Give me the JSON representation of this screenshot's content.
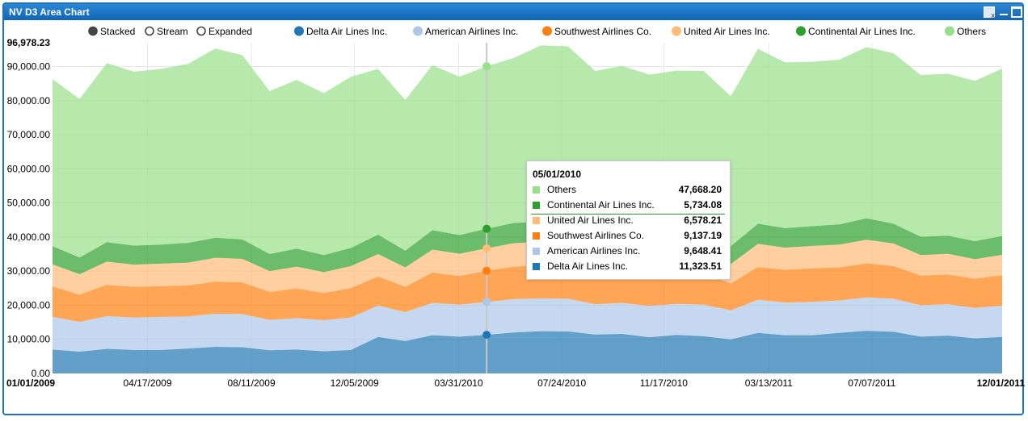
{
  "window": {
    "title": "NV D3 Area Chart",
    "controls": [
      "export-icon",
      "minimize-icon",
      "maximize-icon"
    ]
  },
  "controls": {
    "modes": [
      {
        "label": "Stacked",
        "selected": true
      },
      {
        "label": "Stream",
        "selected": false
      },
      {
        "label": "Expanded",
        "selected": false
      }
    ]
  },
  "chart_data": {
    "type": "area",
    "stacked": true,
    "ymax_label": "96,978.23",
    "ylim": [
      0,
      96978.23
    ],
    "yticks": [
      "0.00",
      "10,000.00",
      "20,000.00",
      "30,000.00",
      "40,000.00",
      "50,000.00",
      "60,000.00",
      "70,000.00",
      "80,000.00",
      "90,000.00"
    ],
    "ytick_values": [
      0,
      10000,
      20000,
      30000,
      40000,
      50000,
      60000,
      70000,
      80000,
      90000
    ],
    "xticks": [
      "01/01/2009",
      "04/17/2009",
      "08/11/2009",
      "12/05/2009",
      "03/31/2010",
      "07/24/2010",
      "11/17/2010",
      "03/13/2011",
      "07/07/2011",
      "12/01/2011"
    ],
    "x": [
      "2009-01",
      "2009-02",
      "2009-03",
      "2009-04",
      "2009-05",
      "2009-06",
      "2009-07",
      "2009-08",
      "2009-09",
      "2009-10",
      "2009-11",
      "2009-12",
      "2010-01",
      "2010-02",
      "2010-03",
      "2010-04",
      "2010-05",
      "2010-06",
      "2010-07",
      "2010-08",
      "2010-09",
      "2010-10",
      "2010-11",
      "2010-12",
      "2011-01",
      "2011-02",
      "2011-03",
      "2011-04",
      "2011-05",
      "2011-06",
      "2011-07",
      "2011-08",
      "2011-09",
      "2011-10",
      "2011-11",
      "2011-12"
    ],
    "grid": true,
    "legend": "top",
    "series": [
      {
        "name": "Delta Air Lines Inc.",
        "color": "#1f77b4",
        "values": [
          7000,
          6400,
          7200,
          6900,
          6900,
          7300,
          7800,
          7700,
          6800,
          7000,
          6500,
          6900,
          10700,
          9500,
          11200,
          10800,
          11324,
          12000,
          12400,
          12300,
          11400,
          11600,
          10600,
          11300,
          10900,
          10000,
          11900,
          11200,
          11200,
          11900,
          12500,
          12200,
          10800,
          11100,
          10300,
          10700
        ]
      },
      {
        "name": "American Airlines Inc.",
        "color": "#aec7e8",
        "values": [
          9600,
          8700,
          9600,
          9500,
          9700,
          9400,
          9700,
          9700,
          8900,
          9200,
          9100,
          9500,
          9200,
          8500,
          9500,
          9400,
          9648,
          9800,
          9600,
          9600,
          8900,
          9100,
          9200,
          9100,
          9300,
          8500,
          9700,
          9600,
          9800,
          9500,
          9800,
          9700,
          9200,
          9200,
          8900,
          9200
        ]
      },
      {
        "name": "Southwest Airlines Co.",
        "color": "#ff7f0e",
        "values": [
          8900,
          8000,
          9200,
          9000,
          9000,
          9100,
          9400,
          9300,
          8200,
          8700,
          8000,
          8600,
          8500,
          7400,
          8900,
          8400,
          9137,
          9500,
          9800,
          9700,
          9100,
          9200,
          8900,
          9200,
          9000,
          7900,
          9600,
          9600,
          9800,
          9700,
          10000,
          9600,
          8700,
          8700,
          8600,
          8900
        ]
      },
      {
        "name": "United Air Lines Inc.",
        "color": "#ffbb78",
        "values": [
          6500,
          6000,
          6800,
          6500,
          6600,
          6700,
          7000,
          6900,
          6100,
          6400,
          6100,
          6500,
          6600,
          5700,
          6700,
          6500,
          6578,
          6900,
          6800,
          6800,
          6300,
          6400,
          6100,
          6400,
          6300,
          5700,
          6800,
          6500,
          6600,
          6700,
          6900,
          6600,
          6000,
          6100,
          5700,
          6000
        ]
      },
      {
        "name": "Continental Air Lines Inc.",
        "color": "#2ca02c",
        "values": [
          5300,
          4900,
          5700,
          5600,
          5600,
          5800,
          5900,
          5700,
          5000,
          5300,
          5000,
          5300,
          5700,
          4900,
          5700,
          5500,
          5734,
          5900,
          6000,
          5900,
          5600,
          5700,
          5500,
          5500,
          5600,
          5200,
          5900,
          5700,
          5800,
          5900,
          6300,
          5800,
          5400,
          5300,
          5300,
          5500
        ]
      },
      {
        "name": "Others",
        "color": "#98df8a",
        "values": [
          49000,
          46500,
          52500,
          51000,
          51500,
          52500,
          55500,
          54000,
          47800,
          49500,
          47500,
          50200,
          48600,
          44200,
          48400,
          46400,
          47668,
          48400,
          51600,
          51600,
          47400,
          48200,
          47300,
          47300,
          47600,
          44000,
          51300,
          48600,
          48200,
          48300,
          50200,
          50000,
          47400,
          47500,
          47000,
          49100
        ]
      }
    ],
    "tooltip": {
      "date": "05/01/2010",
      "rows": [
        {
          "name": "Others",
          "value": "47,668.20",
          "color": "#98df8a"
        },
        {
          "name": "Continental Air Lines Inc.",
          "value": "5,734.08",
          "color": "#2ca02c"
        },
        {
          "name": "United Air Lines Inc.",
          "value": "6,578.21",
          "color": "#ffbb78"
        },
        {
          "name": "Southwest Airlines Co.",
          "value": "9,137.19",
          "color": "#ff7f0e"
        },
        {
          "name": "American Airlines Inc.",
          "value": "9,648.41",
          "color": "#aec7e8"
        },
        {
          "name": "Delta Air Lines Inc.",
          "value": "11,323.51",
          "color": "#1f77b4"
        }
      ]
    }
  }
}
